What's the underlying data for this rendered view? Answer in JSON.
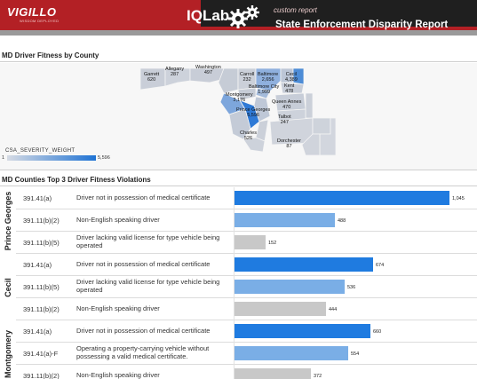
{
  "header": {
    "logo": "VIGILLO",
    "logo_tagline": "WISDOM DEPLOYED",
    "product": "IQLab",
    "subtitle": "custom report",
    "title": "State Enforcement Disparity Report"
  },
  "map_section": {
    "title": "MD Driver Fitness by County",
    "legend": {
      "title": "CSA_SEVERITY_WEIGHT",
      "min": "1",
      "max": "5,596",
      "color_low": "#d6dbe4",
      "color_high": "#1f73d4"
    },
    "counties": [
      {
        "name": "Garrett",
        "value": "620"
      },
      {
        "name": "Allegany",
        "value": "287"
      },
      {
        "name": "Washington",
        "value": "497"
      },
      {
        "name": "Carroll",
        "value": "232"
      },
      {
        "name": "Baltimore",
        "value": "2,656"
      },
      {
        "name": "Cecil",
        "value": "4,389"
      },
      {
        "name": "Harford",
        "value": ""
      },
      {
        "name": "Kent",
        "value": "478"
      },
      {
        "name": "Baltimore City",
        "value": "1,999"
      },
      {
        "name": "Montgomery",
        "value": "3,176"
      },
      {
        "name": "Prince Georges",
        "value": "5,596"
      },
      {
        "name": "Queen Annes",
        "value": "470"
      },
      {
        "name": "Talbot",
        "value": "247"
      },
      {
        "name": "Charles",
        "value": "526"
      },
      {
        "name": "Dorchester",
        "value": "87"
      }
    ]
  },
  "violations_section": {
    "title": "MD Counties Top 3 Driver Fitness Violations",
    "max_value": 1045,
    "colors": {
      "primary": "#1f7be0",
      "secondary": "#7aaee6",
      "tertiary": "#c8c8c8"
    },
    "groups": [
      {
        "county": "Prince Georges",
        "rows": [
          {
            "code": "391.41(a)",
            "description": "Driver not in possession of medical certificate",
            "value": 1045,
            "value_label": "1,045",
            "color": "#1f7be0"
          },
          {
            "code": "391.11(b)(2)",
            "description": "Non-English speaking driver",
            "value": 488,
            "value_label": "488",
            "color": "#7aaee6"
          },
          {
            "code": "391.11(b)(5)",
            "description": "Driver lacking valid license for type vehicle being operated",
            "value": 152,
            "value_label": "152",
            "color": "#c8c8c8"
          }
        ]
      },
      {
        "county": "Cecil",
        "rows": [
          {
            "code": "391.41(a)",
            "description": "Driver not in possession of medical certificate",
            "value": 674,
            "value_label": "674",
            "color": "#1f7be0"
          },
          {
            "code": "391.11(b)(5)",
            "description": "Driver lacking valid license for type vehicle being operated",
            "value": 536,
            "value_label": "536",
            "color": "#7aaee6"
          },
          {
            "code": "391.11(b)(2)",
            "description": "Non-English speaking driver",
            "value": 444,
            "value_label": "444",
            "color": "#c8c8c8"
          }
        ]
      },
      {
        "county": "Montgomery",
        "rows": [
          {
            "code": "391.41(a)",
            "description": "Driver not in possession of medical certificate",
            "value": 660,
            "value_label": "660",
            "color": "#1f7be0"
          },
          {
            "code": "391.41(a)-F",
            "description": "Operating a property-carrying vehicle without possessing a valid medical certificate.",
            "value": 554,
            "value_label": "554",
            "color": "#7aaee6"
          },
          {
            "code": "391.11(b)(2)",
            "description": "Non-English speaking driver",
            "value": 372,
            "value_label": "372",
            "color": "#c8c8c8"
          }
        ]
      }
    ]
  }
}
